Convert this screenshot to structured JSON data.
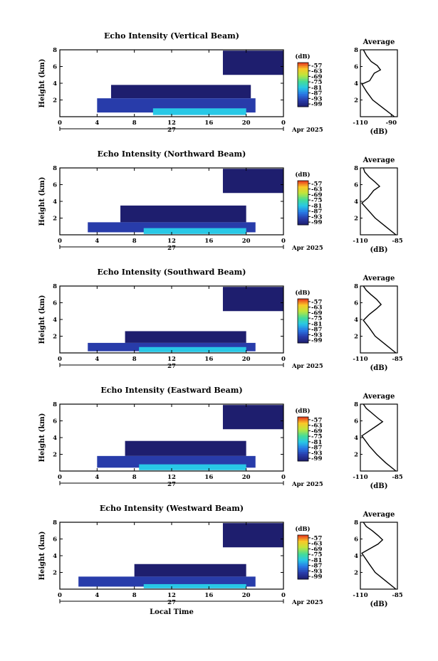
{
  "chart_data": [
    {
      "type": "heatmap",
      "title": "Echo Intensity (Vertical Beam)",
      "ylabel": "Height (km)",
      "xlabel": "",
      "x_ticks": [
        "0",
        "4",
        "8",
        "12",
        "16",
        "20",
        "0"
      ],
      "xlim": [
        0,
        24
      ],
      "ylim": [
        0,
        8
      ],
      "y_ticks": [
        "2",
        "4",
        "6",
        "8"
      ],
      "date_label": "27",
      "month_label": "Apr 2025",
      "colorbar": {
        "unit": "(dB)",
        "ticks": [
          "-57",
          "-63",
          "-69",
          "-75",
          "-81",
          "-87",
          "-93",
          "-99"
        ]
      },
      "regions": [
        {
          "hours": [
            5.5,
            20.5
          ],
          "km": [
            2.2,
            3.8
          ],
          "db": -99
        },
        {
          "hours": [
            4.0,
            21.0
          ],
          "km": [
            0.5,
            2.2
          ],
          "db": -93
        },
        {
          "hours": [
            10.0,
            20.0
          ],
          "km": [
            0.2,
            1.0
          ],
          "db": -81
        },
        {
          "hours": [
            17.5,
            24.0
          ],
          "km": [
            5.0,
            7.9
          ],
          "db": -99
        }
      ],
      "profile": {
        "title": "Average",
        "xlabel": "(dB)",
        "x_ticks": [
          "-110",
          "-90"
        ],
        "xlim": [
          -110,
          -86
        ],
        "y_ticks": [
          "2",
          "4",
          "6",
          "8"
        ],
        "points": [
          [
            -88,
            0
          ],
          [
            -95,
            1
          ],
          [
            -102,
            2
          ],
          [
            -106,
            3
          ],
          [
            -109,
            3.9
          ],
          [
            -104,
            4.3
          ],
          [
            -101,
            5.2
          ],
          [
            -97,
            5.6
          ],
          [
            -99,
            6.1
          ],
          [
            -103,
            6.6
          ],
          [
            -106,
            7.3
          ],
          [
            -108,
            8
          ]
        ]
      }
    },
    {
      "type": "heatmap",
      "title": "Echo Intensity (Northward Beam)",
      "ylabel": "Height (km)",
      "xlabel": "",
      "x_ticks": [
        "0",
        "4",
        "8",
        "12",
        "16",
        "20",
        "0"
      ],
      "xlim": [
        0,
        24
      ],
      "ylim": [
        0,
        8
      ],
      "y_ticks": [
        "2",
        "4",
        "6",
        "8"
      ],
      "date_label": "27",
      "month_label": "Apr 2025",
      "colorbar": {
        "unit": "(dB)",
        "ticks": [
          "-57",
          "-63",
          "-69",
          "-75",
          "-81",
          "-87",
          "-93",
          "-99"
        ]
      },
      "regions": [
        {
          "hours": [
            6.5,
            20.0
          ],
          "km": [
            1.5,
            3.5
          ],
          "db": -99
        },
        {
          "hours": [
            3.0,
            21.0
          ],
          "km": [
            0.3,
            1.5
          ],
          "db": -93
        },
        {
          "hours": [
            9.0,
            20.0
          ],
          "km": [
            0.1,
            0.8
          ],
          "db": -81
        },
        {
          "hours": [
            17.5,
            24.0
          ],
          "km": [
            5.0,
            7.9
          ],
          "db": -99
        }
      ],
      "profile": {
        "title": "Average",
        "xlabel": "(dB)",
        "x_ticks": [
          "-110",
          "-85"
        ],
        "xlim": [
          -110,
          -85
        ],
        "y_ticks": [
          "2",
          "4",
          "6",
          "8"
        ],
        "points": [
          [
            -86,
            0
          ],
          [
            -93,
            1
          ],
          [
            -100,
            2
          ],
          [
            -105,
            3
          ],
          [
            -109,
            3.8
          ],
          [
            -105,
            4.4
          ],
          [
            -101,
            5.3
          ],
          [
            -97,
            5.8
          ],
          [
            -100,
            6.3
          ],
          [
            -104,
            6.9
          ],
          [
            -107,
            7.5
          ],
          [
            -108,
            8
          ]
        ]
      }
    },
    {
      "type": "heatmap",
      "title": "Echo Intensity (Southward Beam)",
      "ylabel": "Height (km)",
      "xlabel": "",
      "x_ticks": [
        "0",
        "4",
        "8",
        "12",
        "16",
        "20",
        "0"
      ],
      "xlim": [
        0,
        24
      ],
      "ylim": [
        0,
        8
      ],
      "y_ticks": [
        "2",
        "4",
        "6",
        "8"
      ],
      "date_label": "27",
      "month_label": "Apr 2025",
      "colorbar": {
        "unit": "(dB)",
        "ticks": [
          "-57",
          "-63",
          "-69",
          "-75",
          "-81",
          "-87",
          "-93",
          "-99"
        ]
      },
      "regions": [
        {
          "hours": [
            7.0,
            20.0
          ],
          "km": [
            1.2,
            2.6
          ],
          "db": -99
        },
        {
          "hours": [
            3.0,
            21.0
          ],
          "km": [
            0.2,
            1.2
          ],
          "db": -93
        },
        {
          "hours": [
            8.5,
            20.0
          ],
          "km": [
            0.1,
            0.7
          ],
          "db": -81
        },
        {
          "hours": [
            17.5,
            24.0
          ],
          "km": [
            5.0,
            7.9
          ],
          "db": -99
        }
      ],
      "profile": {
        "title": "Average",
        "xlabel": "(dB)",
        "x_ticks": [
          "-110",
          "-85"
        ],
        "xlim": [
          -110,
          -85
        ],
        "y_ticks": [
          "2",
          "4",
          "6",
          "8"
        ],
        "points": [
          [
            -86,
            0
          ],
          [
            -93,
            1
          ],
          [
            -100,
            2
          ],
          [
            -104,
            3
          ],
          [
            -108,
            3.9
          ],
          [
            -104,
            4.6
          ],
          [
            -99,
            5.3
          ],
          [
            -96,
            5.8
          ],
          [
            -99,
            6.4
          ],
          [
            -103,
            7
          ],
          [
            -106,
            7.5
          ],
          [
            -108,
            8
          ]
        ]
      }
    },
    {
      "type": "heatmap",
      "title": "Echo Intensity (Eastward Beam)",
      "ylabel": "Height (km)",
      "xlabel": "",
      "x_ticks": [
        "0",
        "4",
        "8",
        "12",
        "16",
        "20",
        "0"
      ],
      "xlim": [
        0,
        24
      ],
      "ylim": [
        0,
        8
      ],
      "y_ticks": [
        "2",
        "4",
        "6",
        "8"
      ],
      "date_label": "27",
      "month_label": "Apr 2025",
      "colorbar": {
        "unit": "(dB)",
        "ticks": [
          "-57",
          "-63",
          "-69",
          "-75",
          "-81",
          "-87",
          "-93",
          "-99"
        ]
      },
      "regions": [
        {
          "hours": [
            7.0,
            20.0
          ],
          "km": [
            1.8,
            3.6
          ],
          "db": -99
        },
        {
          "hours": [
            4.0,
            21.0
          ],
          "km": [
            0.4,
            1.8
          ],
          "db": -93
        },
        {
          "hours": [
            8.5,
            20.0
          ],
          "km": [
            0.1,
            0.8
          ],
          "db": -81
        },
        {
          "hours": [
            17.5,
            24.0
          ],
          "km": [
            5.0,
            7.9
          ],
          "db": -99
        }
      ],
      "profile": {
        "title": "Average",
        "xlabel": "(dB)",
        "x_ticks": [
          "-110",
          "-85"
        ],
        "xlim": [
          -110,
          -85
        ],
        "y_ticks": [
          "2",
          "4",
          "6",
          "8"
        ],
        "points": [
          [
            -86,
            0
          ],
          [
            -93,
            1
          ],
          [
            -99,
            2
          ],
          [
            -104,
            3
          ],
          [
            -109,
            4.2
          ],
          [
            -104,
            4.8
          ],
          [
            -99,
            5.4
          ],
          [
            -95,
            5.9
          ],
          [
            -98,
            6.3
          ],
          [
            -102,
            6.9
          ],
          [
            -106,
            7.5
          ],
          [
            -108,
            8
          ]
        ]
      }
    },
    {
      "type": "heatmap",
      "title": "Echo Intensity (Westward Beam)",
      "ylabel": "Height (km)",
      "xlabel": "Local Time",
      "x_ticks": [
        "0",
        "4",
        "8",
        "12",
        "16",
        "20",
        "0"
      ],
      "xlim": [
        0,
        24
      ],
      "ylim": [
        0,
        8
      ],
      "y_ticks": [
        "2",
        "4",
        "6",
        "8"
      ],
      "date_label": "27",
      "month_label": "Apr 2025",
      "colorbar": {
        "unit": "(dB)",
        "ticks": [
          "-57",
          "-63",
          "-69",
          "-75",
          "-81",
          "-87",
          "-93",
          "-99"
        ]
      },
      "regions": [
        {
          "hours": [
            8.0,
            20.0
          ],
          "km": [
            1.5,
            3.0
          ],
          "db": -99
        },
        {
          "hours": [
            2.0,
            21.0
          ],
          "km": [
            0.3,
            1.5
          ],
          "db": -93
        },
        {
          "hours": [
            9.0,
            20.0
          ],
          "km": [
            0.1,
            0.6
          ],
          "db": -81
        },
        {
          "hours": [
            17.5,
            24.0
          ],
          "km": [
            5.0,
            7.9
          ],
          "db": -99
        }
      ],
      "profile": {
        "title": "Average",
        "xlabel": "(dB)",
        "x_ticks": [
          "-110",
          "-85"
        ],
        "xlim": [
          -110,
          -85
        ],
        "y_ticks": [
          "2",
          "4",
          "6",
          "8"
        ],
        "points": [
          [
            -86,
            0
          ],
          [
            -93,
            1
          ],
          [
            -100,
            2
          ],
          [
            -104,
            3
          ],
          [
            -109,
            4.3
          ],
          [
            -104,
            4.8
          ],
          [
            -98,
            5.4
          ],
          [
            -95,
            5.9
          ],
          [
            -98,
            6.4
          ],
          [
            -102,
            7
          ],
          [
            -106,
            7.5
          ],
          [
            -108,
            8
          ]
        ]
      }
    }
  ]
}
